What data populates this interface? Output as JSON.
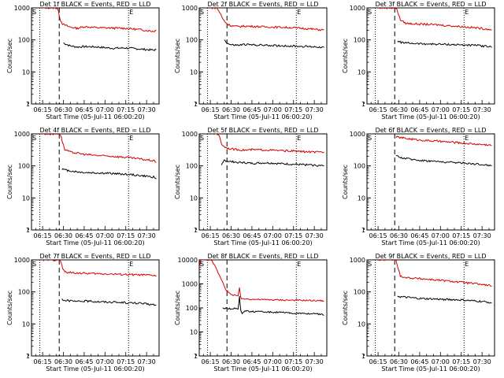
{
  "colors": {
    "events": "#000000",
    "lld": "#d40000",
    "axes": "#000000"
  },
  "common": {
    "ylabel": "Counts/sec",
    "xlabel": "Start Time (05-Jul-11 06:00:20)",
    "xticks": [
      "06:15",
      "06:30",
      "06:45",
      "07:00",
      "07:15",
      "07:30"
    ],
    "s_marker": "S",
    "e_marker": "E"
  },
  "chart_data": [
    {
      "type": "line",
      "title": "Det 1f BLACK = Events, RED = LLD",
      "x_range_min": [
        7,
        99
      ],
      "ylim": [
        1,
        1000
      ],
      "yscale": "log",
      "ytick_labels": [
        "1",
        "10",
        "100",
        "1000"
      ],
      "yticks": [
        1,
        10,
        100,
        1000
      ],
      "vlines": {
        "dotted": [
          13,
          77
        ],
        "dashed": 27
      },
      "series": [
        {
          "name": "BLACK",
          "x": [
            27,
            30,
            35,
            40,
            45,
            55,
            65,
            75,
            85,
            95,
            97
          ],
          "y": [
            null,
            80,
            65,
            60,
            62,
            60,
            55,
            56,
            52,
            48,
            50
          ]
        },
        {
          "name": "RED",
          "x": [
            15,
            22,
            24,
            25,
            26,
            27,
            28,
            29,
            30,
            35,
            40,
            45,
            55,
            65,
            75,
            85,
            95,
            97
          ],
          "y": [
            1000,
            1000,
            1000,
            1000,
            900,
            600,
            400,
            340,
            300,
            250,
            230,
            260,
            240,
            235,
            230,
            210,
            185,
            200
          ]
        }
      ]
    },
    {
      "type": "line",
      "title": "Det 2f BLACK = Events, RED = LLD",
      "x_range_min": [
        7,
        99
      ],
      "ylim": [
        1,
        1000
      ],
      "yscale": "log",
      "ytick_labels": [
        "1",
        "10",
        "100",
        "1000"
      ],
      "yticks": [
        1,
        10,
        100,
        1000
      ],
      "vlines": {
        "dotted": [
          13,
          77
        ],
        "dashed": 27
      },
      "series": [
        {
          "name": "BLACK",
          "x": [
            22,
            25,
            28,
            30,
            35,
            40,
            45,
            55,
            65,
            75,
            85,
            95,
            97
          ],
          "y": [
            null,
            100,
            75,
            70,
            68,
            72,
            70,
            68,
            66,
            64,
            62,
            60,
            58
          ]
        },
        {
          "name": "RED",
          "x": [
            15,
            19,
            20,
            22,
            24,
            26,
            28,
            30,
            35,
            40,
            45,
            55,
            65,
            75,
            85,
            95,
            97
          ],
          "y": [
            1000,
            1000,
            950,
            700,
            450,
            350,
            300,
            280,
            260,
            270,
            265,
            255,
            250,
            240,
            225,
            205,
            210
          ]
        }
      ]
    },
    {
      "type": "line",
      "title": "Det 3f BLACK = Events, RED = LLD",
      "x_range_min": [
        7,
        99
      ],
      "ylim": [
        1,
        1000
      ],
      "yscale": "log",
      "ytick_labels": [
        "1",
        "10",
        "100",
        "1000"
      ],
      "yticks": [
        1,
        10,
        100,
        1000
      ],
      "vlines": {
        "dotted": [
          13,
          77
        ],
        "dashed": 27
      },
      "series": [
        {
          "name": "BLACK",
          "x": [
            27,
            29,
            31,
            35,
            40,
            45,
            55,
            65,
            75,
            85,
            95,
            97
          ],
          "y": [
            null,
            90,
            85,
            80,
            78,
            76,
            74,
            72,
            70,
            68,
            62,
            58
          ]
        },
        {
          "name": "RED",
          "x": [
            15,
            24,
            26,
            27,
            28,
            29,
            30,
            31,
            35,
            40,
            45,
            55,
            65,
            75,
            85,
            95,
            97
          ],
          "y": [
            1000,
            1000,
            1000,
            1000,
            950,
            800,
            600,
            420,
            330,
            320,
            310,
            300,
            280,
            260,
            240,
            215,
            210
          ]
        }
      ]
    },
    {
      "type": "line",
      "title": "Det 4f BLACK = Events, RED = LLD",
      "x_range_min": [
        7,
        99
      ],
      "ylim": [
        1,
        1000
      ],
      "yscale": "log",
      "ytick_labels": [
        "1",
        "10",
        "100",
        "1000"
      ],
      "yticks": [
        1,
        10,
        100,
        1000
      ],
      "vlines": {
        "dotted": [
          13,
          77
        ],
        "dashed": 27
      },
      "series": [
        {
          "name": "BLACK",
          "x": [
            27,
            29,
            31,
            35,
            40,
            45,
            55,
            65,
            75,
            85,
            95,
            97
          ],
          "y": [
            null,
            80,
            75,
            70,
            65,
            62,
            60,
            58,
            55,
            50,
            45,
            40
          ]
        },
        {
          "name": "RED",
          "x": [
            15,
            24,
            26,
            27,
            28,
            29,
            30,
            31,
            35,
            40,
            45,
            55,
            65,
            75,
            85,
            95,
            97
          ],
          "y": [
            1000,
            1000,
            1000,
            1000,
            900,
            650,
            450,
            320,
            270,
            250,
            230,
            210,
            200,
            185,
            165,
            145,
            130
          ]
        }
      ]
    },
    {
      "type": "line",
      "title": "Det 5f BLACK = Events, RED = LLD",
      "x_range_min": [
        7,
        99
      ],
      "ylim": [
        1,
        1000
      ],
      "yscale": "log",
      "ytick_labels": [
        "1",
        "10",
        "100",
        "1000"
      ],
      "yticks": [
        1,
        10,
        100,
        1000
      ],
      "vlines": {
        "dotted": [
          13,
          77
        ],
        "dashed": 27
      },
      "series": [
        {
          "name": "BLACK",
          "x": [
            22,
            23,
            25,
            28,
            30,
            35,
            40,
            45,
            55,
            65,
            75,
            85,
            95,
            97
          ],
          "y": [
            null,
            100,
            150,
            140,
            135,
            130,
            125,
            120,
            125,
            118,
            112,
            108,
            102,
            100
          ]
        },
        {
          "name": "RED",
          "x": [
            15,
            19,
            20,
            21,
            22,
            23,
            25,
            28,
            30,
            35,
            40,
            45,
            55,
            65,
            75,
            85,
            95,
            97
          ],
          "y": [
            1000,
            1000,
            1000,
            950,
            700,
            500,
            400,
            350,
            340,
            320,
            310,
            320,
            315,
            300,
            290,
            275,
            265,
            270
          ]
        }
      ]
    },
    {
      "type": "line",
      "title": "Det 6f BLACK = Events, RED = LLD",
      "x_range_min": [
        7,
        99
      ],
      "ylim": [
        1,
        1000
      ],
      "yscale": "log",
      "ytick_labels": [
        "1",
        "10",
        "100",
        "1000"
      ],
      "yticks": [
        1,
        10,
        100,
        1000
      ],
      "vlines": {
        "dotted": [
          13,
          77
        ],
        "dashed": 27
      },
      "series": [
        {
          "name": "BLACK",
          "x": [
            27,
            28,
            30,
            35,
            40,
            45,
            55,
            65,
            75,
            85,
            95,
            97
          ],
          "y": [
            null,
            200,
            190,
            170,
            160,
            150,
            140,
            130,
            125,
            115,
            105,
            100
          ]
        },
        {
          "name": "RED",
          "x": [
            27,
            28,
            30,
            35,
            40,
            45,
            55,
            65,
            75,
            85,
            95,
            97
          ],
          "y": [
            null,
            800,
            780,
            720,
            680,
            640,
            600,
            560,
            520,
            480,
            450,
            430
          ]
        }
      ]
    },
    {
      "type": "line",
      "title": "Det 7f BLACK = Events, RED = LLD",
      "x_range_min": [
        7,
        99
      ],
      "ylim": [
        1,
        1000
      ],
      "yscale": "log",
      "ytick_labels": [
        "1",
        "10",
        "100",
        "1000"
      ],
      "yticks": [
        1,
        10,
        100,
        1000
      ],
      "vlines": {
        "dotted": [
          13,
          77
        ],
        "dashed": 27
      },
      "series": [
        {
          "name": "BLACK",
          "x": [
            27,
            29,
            31,
            35,
            40,
            45,
            55,
            65,
            75,
            85,
            95,
            97
          ],
          "y": [
            null,
            60,
            55,
            52,
            50,
            52,
            50,
            48,
            46,
            44,
            40,
            38
          ]
        },
        {
          "name": "RED",
          "x": [
            15,
            24,
            26,
            27,
            28,
            29,
            30,
            31,
            35,
            40,
            45,
            55,
            65,
            75,
            85,
            95,
            97
          ],
          "y": [
            1000,
            1000,
            1000,
            1000,
            900,
            650,
            480,
            420,
            400,
            390,
            380,
            370,
            360,
            350,
            340,
            330,
            320
          ]
        }
      ]
    },
    {
      "type": "line",
      "title": "Det 8f BLACK = Events, RED = LLD",
      "x_range_min": [
        7,
        99
      ],
      "ylim": [
        1,
        10000
      ],
      "yscale": "log",
      "ytick_labels": [
        "1",
        "10",
        "100",
        "1000",
        "10000"
      ],
      "yticks": [
        1,
        10,
        100,
        1000,
        10000
      ],
      "vlines": {
        "dotted": [
          13,
          77
        ],
        "dashed": 27
      },
      "series": [
        {
          "name": "BLACK",
          "x": [
            22,
            24,
            27,
            30,
            33,
            35,
            36,
            37,
            38,
            40,
            45,
            55,
            65,
            75,
            85,
            95,
            97
          ],
          "y": [
            null,
            100,
            95,
            90,
            100,
            85,
            300,
            80,
            60,
            75,
            70,
            68,
            65,
            60,
            58,
            55,
            50
          ]
        },
        {
          "name": "RED",
          "x": [
            7,
            8,
            10,
            12,
            14,
            16,
            18,
            20,
            22,
            24,
            26,
            28,
            30,
            33,
            35,
            36,
            37,
            38,
            40,
            45,
            55,
            65,
            75,
            85,
            95,
            97
          ],
          "y": [
            5000,
            10000,
            10000,
            10000,
            10000,
            9000,
            6000,
            3500,
            2000,
            1200,
            600,
            450,
            350,
            350,
            300,
            700,
            260,
            230,
            240,
            230,
            220,
            215,
            210,
            205,
            200,
            195
          ]
        }
      ]
    },
    {
      "type": "line",
      "title": "Det 9f BLACK = Events, RED = LLD",
      "x_range_min": [
        7,
        99
      ],
      "ylim": [
        1,
        1000
      ],
      "yscale": "log",
      "ytick_labels": [
        "1",
        "10",
        "100",
        "1000"
      ],
      "yticks": [
        1,
        10,
        100,
        1000
      ],
      "vlines": {
        "dotted": [
          13,
          77
        ],
        "dashed": 27
      },
      "series": [
        {
          "name": "BLACK",
          "x": [
            27,
            29,
            31,
            35,
            40,
            45,
            55,
            65,
            75,
            85,
            95,
            97
          ],
          "y": [
            null,
            75,
            70,
            68,
            65,
            62,
            60,
            58,
            56,
            52,
            48,
            45
          ]
        },
        {
          "name": "RED",
          "x": [
            15,
            24,
            26,
            27,
            28,
            29,
            30,
            31,
            35,
            40,
            45,
            55,
            65,
            75,
            85,
            95,
            97
          ],
          "y": [
            1000,
            1000,
            1000,
            1000,
            900,
            650,
            450,
            320,
            280,
            270,
            260,
            240,
            220,
            200,
            180,
            160,
            150
          ]
        }
      ]
    }
  ]
}
